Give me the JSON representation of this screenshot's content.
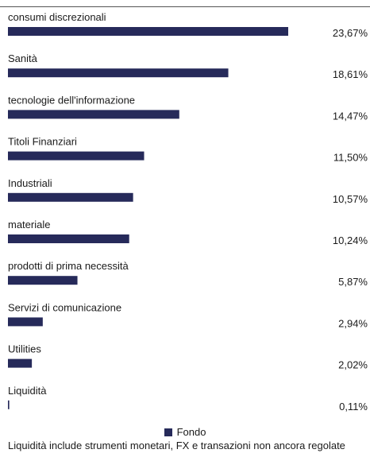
{
  "chart_data": {
    "type": "bar",
    "orientation": "horizontal",
    "categories": [
      "consumi discrezionali",
      "Sanità",
      "tecnologie dell'informazione",
      "Titoli Finanziari",
      "Industriali",
      "materiale",
      "prodotti di prima necessità",
      "Servizi di comunicazione",
      "Utilities",
      "Liquidità"
    ],
    "series": [
      {
        "name": "Fondo",
        "values": [
          23.67,
          18.61,
          14.47,
          11.5,
          10.57,
          10.24,
          5.87,
          2.94,
          2.02,
          0.11
        ],
        "color": "#262a5a"
      }
    ],
    "value_labels": [
      "23,67%",
      "18,61%",
      "14,47%",
      "11,50%",
      "10,57%",
      "10,24%",
      "5,87%",
      "2,94%",
      "2,02%",
      "0,11%"
    ],
    "unit": "%",
    "xlim": [
      0,
      25
    ],
    "grid": false,
    "legend": {
      "position": "bottom-center",
      "label": "Fondo"
    },
    "footnote": "Liquidità include strumenti monetari, FX e transazioni non ancora regolate"
  }
}
